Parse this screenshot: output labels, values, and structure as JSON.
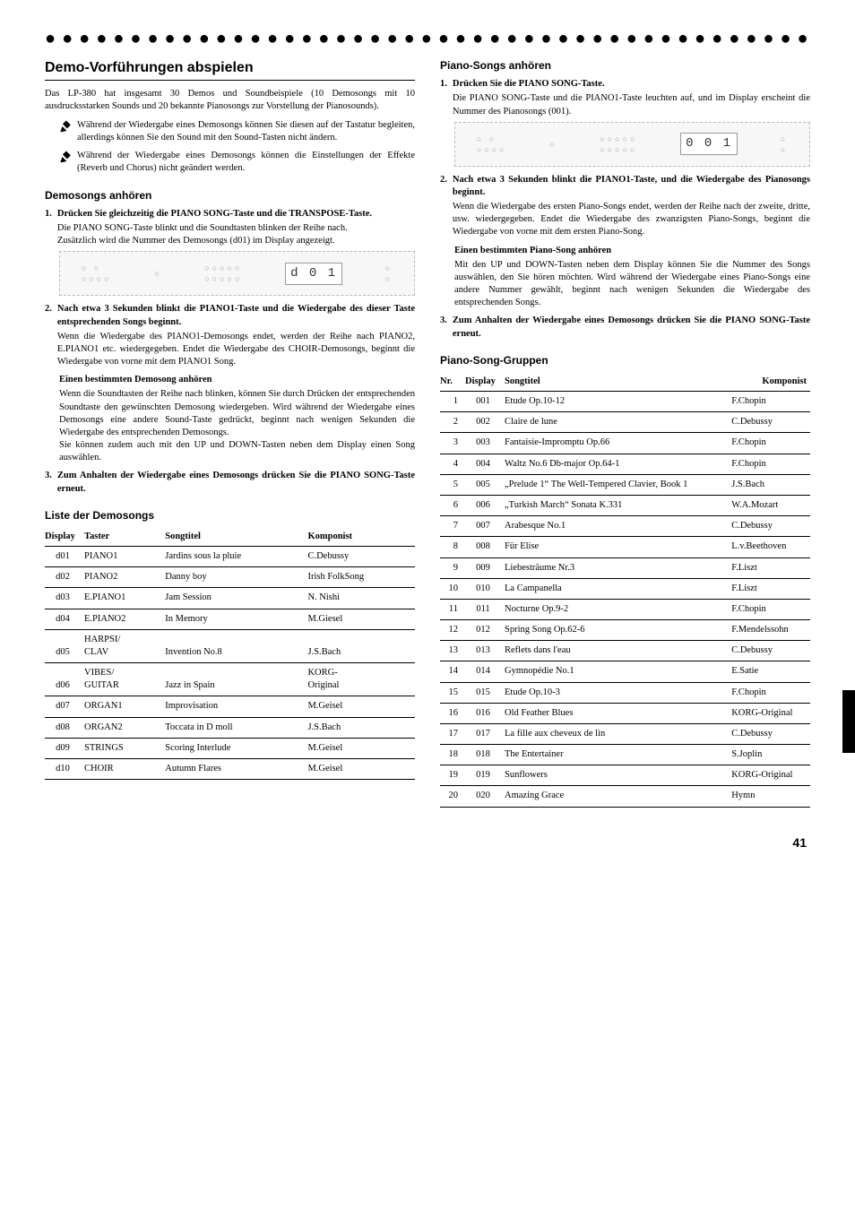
{
  "page_number": "41",
  "left": {
    "section_title": "Demo-Vorführungen abspielen",
    "intro": "Das LP-380 hat insgesamt 30 Demos und Soundbeispiele (10 Demosongs mit 10 ausdrucksstarken Sounds und 20 bekannte Pianosongs zur Vorstellung der Pianosounds).",
    "note1": "Während der Wiedergabe eines Demosongs können Sie diesen auf der Tastatur begleiten, allerdings können Sie den Sound mit den Sound-Tasten nicht ändern.",
    "note2": "Während der Wiedergabe eines Demosongs können die Einstellungen der Effekte (Reverb und Chorus) nicht geändert werden.",
    "sub1_title": "Demosongs anhören",
    "step1_title": "Drücken Sie gleichzeitig die PIANO SONG-Taste und die TRANSPOSE-Taste.",
    "step1_text": "Die PIANO SONG-Taste blinkt und die Soundtasten blinken der Reihe nach.\nZusätzlich wird die Nummer des Demosongs (d01) im Display angezeigt.",
    "panel1_display": "d 0 1",
    "step2_title": "Nach etwa 3 Sekunden blinkt die PIANO1-Taste und die Wiedergabe des dieser Taste entsprechenden Songs beginnt.",
    "step2_text": "Wenn die Wiedergabe des PIANO1-Demosongs endet, werden der Reihe nach PIANO2, E.PIANO1 etc. wiedergegeben. Endet die Wiedergabe des CHOIR-Demosongs, beginnt die Wiedergabe von vorne mit dem PIANO1 Song.",
    "sub_best_title": "Einen bestimmten Demosong anhören",
    "sub_best_text": "Wenn die Soundtasten der Reihe nach blinken, können Sie durch Drücken der entsprechenden Soundtaste den gewünschten Demosong wiedergeben. Wird während der Wiedergabe eines Demosongs eine andere Sound-Taste gedrückt, beginnt nach wenigen Sekunden die Wiedergabe des entsprechenden Demosongs.\nSie können zudem auch mit den UP und DOWN-Tasten neben dem Display einen Song auswählen.",
    "step3_title": "Zum Anhalten der Wiedergabe eines Demosongs drücken Sie die PIANO SONG-Taste erneut.",
    "list_title": "Liste der Demosongs",
    "demo_headers": {
      "display": "Display",
      "taster": "Taster",
      "title": "Songtitel",
      "composer": "Komponist"
    },
    "demos": [
      {
        "display": "d01",
        "taster": "PIANO1",
        "title": "Jardins sous la pluie",
        "composer": "C.Debussy"
      },
      {
        "display": "d02",
        "taster": "PIANO2",
        "title": "Danny boy",
        "composer": "Irish FolkSong"
      },
      {
        "display": "d03",
        "taster": "E.PIANO1",
        "title": "Jam Session",
        "composer": "N. Nishi"
      },
      {
        "display": "d04",
        "taster": "E.PIANO2",
        "title": "In Memory",
        "composer": "M.Giesel"
      },
      {
        "display": "d05",
        "taster": "HARPSI/\nCLAV",
        "title": "Invention No.8",
        "composer": "J.S.Bach"
      },
      {
        "display": "d06",
        "taster": "VIBES/\nGUITAR",
        "title": "Jazz in Spain",
        "composer": "KORG-\nOriginal"
      },
      {
        "display": "d07",
        "taster": "ORGAN1",
        "title": "Improvisation",
        "composer": "M.Geisel"
      },
      {
        "display": "d08",
        "taster": "ORGAN2",
        "title": "Toccata in D moll",
        "composer": "J.S.Bach"
      },
      {
        "display": "d09",
        "taster": "STRINGS",
        "title": "Scoring Interlude",
        "composer": "M.Geisel"
      },
      {
        "display": "d10",
        "taster": "CHOIR",
        "title": "Autumn Flares",
        "composer": "M.Geisel"
      }
    ]
  },
  "right": {
    "sub1_title": "Piano-Songs anhören",
    "step1_title": "Drücken Sie die PIANO SONG-Taste.",
    "step1_text": "Die PIANO SONG-Taste und die PIANO1-Taste leuchten auf, und im Display erscheint die Nummer des Pianosongs (001).",
    "panel1_display": "0 0 1",
    "step2_title": "Nach etwa 3 Sekunden blinkt die PIANO1-Taste, und die Wiedergabe des Pianosongs beginnt.",
    "step2_text": "Wenn die Wiedergabe des ersten Piano-Songs endet, werden der Reihe nach der zweite, dritte, usw. wiedergegeben. Endet die Wiedergabe des zwanzigsten Piano-Songs, beginnt die Wiedergabe von vorne mit dem ersten Piano-Song.",
    "sub_best_title": "Einen bestimmten Piano-Song anhören",
    "sub_best_text": "Mit den UP und DOWN-Tasten neben dem Display können Sie die Nummer des Songs auswählen, den Sie hören möchten. Wird während der Wiedergabe eines Piano-Songs eine andere Nummer gewählt, beginnt nach wenigen Sekunden die Wiedergabe des entsprechenden Songs.",
    "step3_title": "Zum Anhalten der Wiedergabe eines Demosongs drücken Sie die PIANO SONG-Taste erneut.",
    "groups_title": "Piano-Song-Gruppen",
    "piano_headers": {
      "nr": "Nr.",
      "display": "Display",
      "title": "Songtitel",
      "composer": "Komponist"
    },
    "piano_songs": [
      {
        "nr": "1",
        "display": "001",
        "title": "Etude Op.10-12",
        "composer": "F.Chopin"
      },
      {
        "nr": "2",
        "display": "002",
        "title": "Claire de lune",
        "composer": "C.Debussy"
      },
      {
        "nr": "3",
        "display": "003",
        "title": "Fantaisie-Impromptu Op.66",
        "composer": "F.Chopin"
      },
      {
        "nr": "4",
        "display": "004",
        "title": "Waltz No.6 Db-major Op.64-1",
        "composer": "F.Chopin"
      },
      {
        "nr": "5",
        "display": "005",
        "title": "„Prelude 1“ The Well-Tempered Clavier, Book 1",
        "composer": "J.S.Bach"
      },
      {
        "nr": "6",
        "display": "006",
        "title": "„Turkish March“ Sonata K.331",
        "composer": "W.A.Mozart"
      },
      {
        "nr": "7",
        "display": "007",
        "title": "Arabesque No.1",
        "composer": "C.Debussy"
      },
      {
        "nr": "8",
        "display": "008",
        "title": "Für Elise",
        "composer": "L.v.Beethoven"
      },
      {
        "nr": "9",
        "display": "009",
        "title": "Liebesträume Nr.3",
        "composer": "F.Liszt"
      },
      {
        "nr": "10",
        "display": "010",
        "title": "La Campanella",
        "composer": "F.Liszt"
      },
      {
        "nr": "11",
        "display": "011",
        "title": "Nocturne Op.9-2",
        "composer": "F.Chopin"
      },
      {
        "nr": "12",
        "display": "012",
        "title": "Spring Song Op.62-6",
        "composer": "F.Mendelssohn"
      },
      {
        "nr": "13",
        "display": "013",
        "title": "Reflets dans l'eau",
        "composer": "C.Debussy"
      },
      {
        "nr": "14",
        "display": "014",
        "title": "Gymnopédie No.1",
        "composer": "E.Satie"
      },
      {
        "nr": "15",
        "display": "015",
        "title": "Etude Op.10-3",
        "composer": "F.Chopin"
      },
      {
        "nr": "16",
        "display": "016",
        "title": "Old Feather Blues",
        "composer": "KORG-Original"
      },
      {
        "nr": "17",
        "display": "017",
        "title": "La fille aux cheveux de lin",
        "composer": "C.Debussy"
      },
      {
        "nr": "18",
        "display": "018",
        "title": "The Entertainer",
        "composer": "S.Joplin"
      },
      {
        "nr": "19",
        "display": "019",
        "title": "Sunflowers",
        "composer": "KORG-Original"
      },
      {
        "nr": "20",
        "display": "020",
        "title": "Amazing Grace",
        "composer": "Hymn"
      }
    ]
  }
}
